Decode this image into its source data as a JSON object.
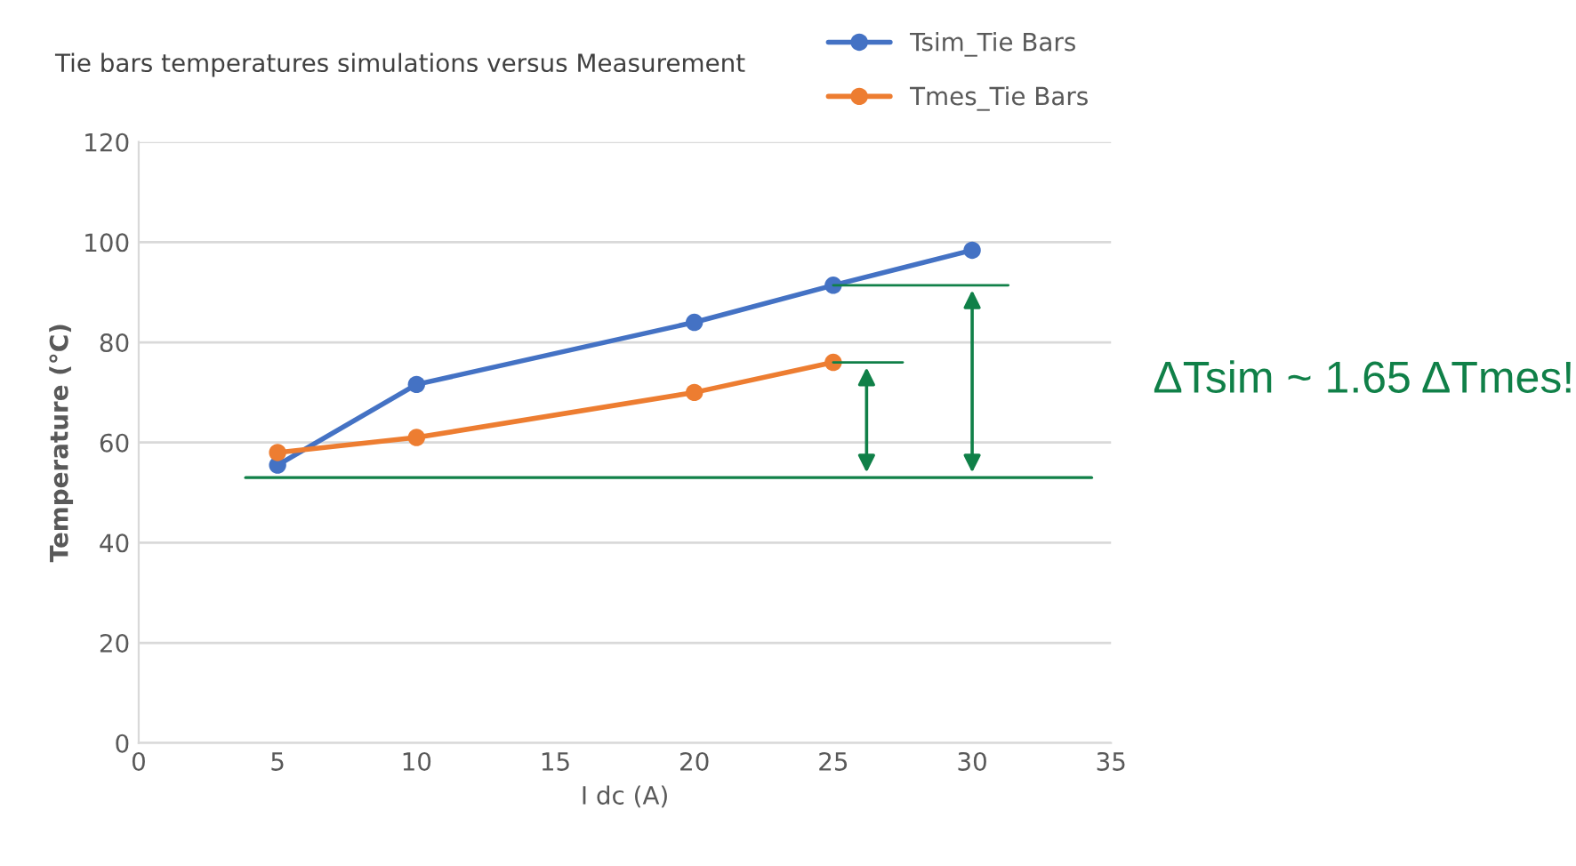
{
  "chart_data": {
    "type": "line",
    "title": "Tie bars temperatures simulations versus Measurement",
    "xlabel": "I dc (A)",
    "ylabel": "Temperature (°C)",
    "series": [
      {
        "name": "Tsim_Tie Bars",
        "color": "#4472c4",
        "x": [
          5,
          10,
          20,
          25,
          30
        ],
        "values": [
          55.5,
          71.6,
          84,
          91.4,
          98.4
        ]
      },
      {
        "name": "Tmes_Tie Bars",
        "color": "#ed7d31",
        "x": [
          5,
          10,
          20,
          25
        ],
        "values": [
          58,
          61,
          70,
          76
        ]
      }
    ],
    "xlim": [
      0,
      35
    ],
    "xticks": [
      0,
      5,
      10,
      15,
      20,
      25,
      30,
      35
    ],
    "ylim": [
      0,
      120
    ],
    "yticks": [
      0,
      20,
      40,
      60,
      80,
      100,
      120
    ],
    "grid": "y",
    "legend": "top right",
    "marker": "circle",
    "line_style": "solid",
    "ref_lines": [
      {
        "axis": "y",
        "value": 53,
        "color": "#108048"
      }
    ],
    "annotations": [
      "ΔTsim ~ 1.65 ΔTmes!"
    ]
  }
}
